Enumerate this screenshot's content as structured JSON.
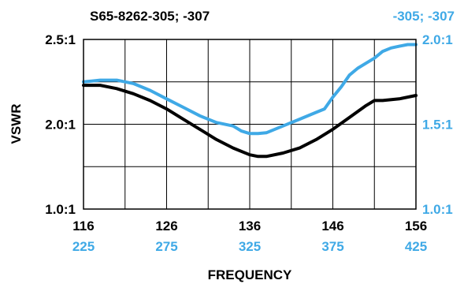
{
  "chart_data": {
    "type": "line",
    "title_left": "S65-8262-305; -307",
    "title_right": "-305; -307",
    "xlabel": "FREQUENCY",
    "ylabel": "VSWR",
    "x_ticks_primary": [
      "116",
      "126",
      "136",
      "146",
      "156"
    ],
    "x_ticks_secondary": [
      "225",
      "275",
      "325",
      "375",
      "425"
    ],
    "xlim": [
      116,
      156
    ],
    "y_left_ticks": [
      "2.5:1",
      "2.0:1",
      "1.0:1"
    ],
    "y_right_ticks": [
      "2.0:1",
      "1.5:1",
      "1.0:1"
    ],
    "ylim_right": [
      1.0,
      2.0
    ],
    "grid": true,
    "colors": {
      "black": "#000000",
      "blue": "#3FA9E6",
      "grid": "#000000"
    },
    "series": [
      {
        "color": "black",
        "x": [
          116,
          118,
          120,
          122,
          124,
          126,
          128,
          130,
          132,
          134,
          136,
          137,
          138,
          140,
          142,
          144,
          146,
          148,
          150,
          151,
          152,
          154,
          156
        ],
        "y": [
          1.73,
          1.73,
          1.71,
          1.68,
          1.64,
          1.59,
          1.53,
          1.47,
          1.41,
          1.36,
          1.32,
          1.31,
          1.31,
          1.33,
          1.36,
          1.41,
          1.47,
          1.54,
          1.61,
          1.64,
          1.64,
          1.65,
          1.67
        ]
      },
      {
        "color": "blue",
        "x": [
          116,
          117,
          118,
          119,
          120,
          122,
          124,
          126,
          128,
          130,
          132,
          134,
          135,
          136,
          137,
          138,
          140,
          142,
          144,
          145,
          146,
          147,
          148,
          149,
          150,
          151,
          152,
          153,
          154,
          155,
          156
        ],
        "y": [
          1.75,
          1.755,
          1.76,
          1.76,
          1.76,
          1.74,
          1.7,
          1.65,
          1.6,
          1.55,
          1.51,
          1.49,
          1.46,
          1.445,
          1.445,
          1.45,
          1.49,
          1.53,
          1.57,
          1.59,
          1.66,
          1.72,
          1.79,
          1.83,
          1.86,
          1.89,
          1.93,
          1.95,
          1.96,
          1.97,
          1.97
        ]
      }
    ]
  }
}
